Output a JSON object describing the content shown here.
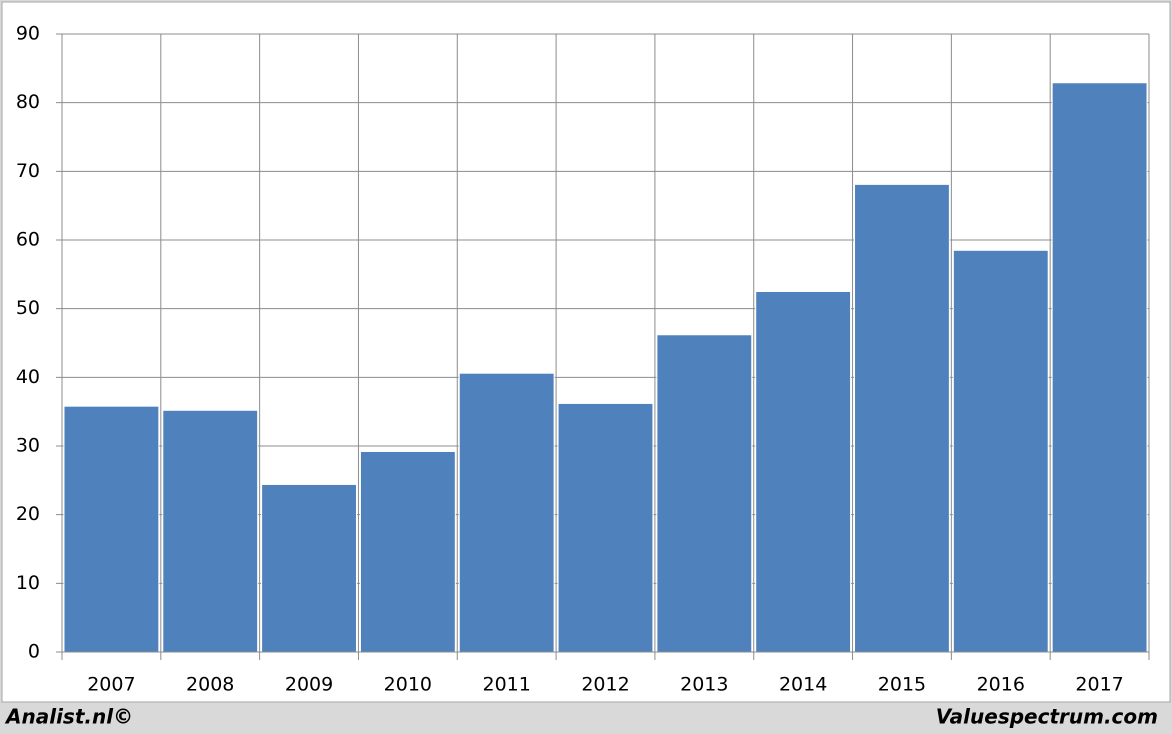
{
  "chart_data": {
    "type": "bar",
    "categories": [
      "2007",
      "2008",
      "2009",
      "2010",
      "2011",
      "2012",
      "2013",
      "2014",
      "2015",
      "2016",
      "2017"
    ],
    "values": [
      35.8,
      35.2,
      24.4,
      29.2,
      40.6,
      36.2,
      46.2,
      52.5,
      68.1,
      58.5,
      82.9
    ],
    "color": "#4f81bd",
    "ylim": [
      0,
      90
    ],
    "yticks": [
      0,
      10,
      20,
      30,
      40,
      50,
      60,
      70,
      80,
      90
    ],
    "grid": true,
    "credit_left": "Analist.nl©",
    "credit_right": "Valuespectrum.com"
  }
}
